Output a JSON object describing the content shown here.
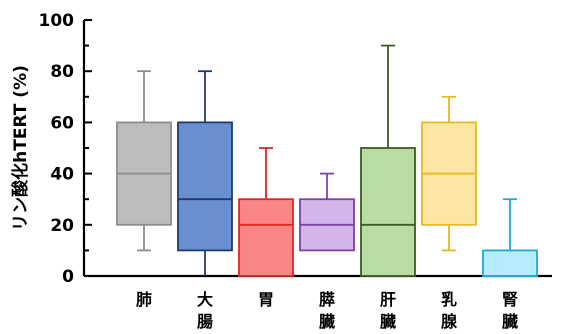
{
  "chart_data": {
    "type": "box",
    "ylabel": "リン酸化hTERT (%)",
    "ylim": [
      0,
      100
    ],
    "yticks": [
      0,
      20,
      40,
      60,
      80,
      100
    ],
    "grid": false,
    "categories": [
      {
        "label": [
          "肺"
        ],
        "whisker_low": 10,
        "q1": 20,
        "median": 40,
        "q3": 60,
        "whisker_high": 80,
        "fill": "#bdbdbd",
        "stroke": "#8c8c8c"
      },
      {
        "label": [
          "大",
          "腸"
        ],
        "whisker_low": 0,
        "q1": 10,
        "median": 30,
        "q3": 60,
        "whisker_high": 80,
        "fill": "#6a8fd1",
        "stroke": "#1f3a6e"
      },
      {
        "label": [
          "胃"
        ],
        "whisker_low": 0,
        "q1": 0,
        "median": 20,
        "q3": 30,
        "whisker_high": 50,
        "fill": "#f98585",
        "stroke": "#e02525"
      },
      {
        "label": [
          "膵",
          "臓"
        ],
        "whisker_low": 10,
        "q1": 10,
        "median": 20,
        "q3": 30,
        "whisker_high": 40,
        "fill": "#d3b5ec",
        "stroke": "#7a44a8"
      },
      {
        "label": [
          "肝",
          "臓"
        ],
        "whisker_low": 0,
        "q1": 0,
        "median": 20,
        "q3": 50,
        "whisker_high": 90,
        "fill": "#b9dca2",
        "stroke": "#3d5a27"
      },
      {
        "label": [
          "乳",
          "腺"
        ],
        "whisker_low": 10,
        "q1": 20,
        "median": 40,
        "q3": 60,
        "whisker_high": 70,
        "fill": "#fde6a3",
        "stroke": "#e8b820"
      },
      {
        "label": [
          "腎",
          "臓"
        ],
        "whisker_low": 0,
        "q1": 0,
        "median": 0,
        "q3": 10,
        "whisker_high": 30,
        "fill": "#b5ebfa",
        "stroke": "#1fa8d9"
      }
    ]
  }
}
